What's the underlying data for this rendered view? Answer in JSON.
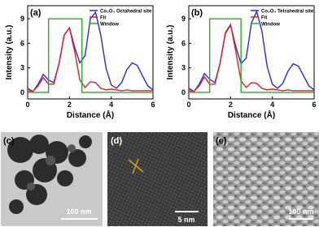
{
  "chart_data": [
    {
      "type": "line",
      "panel_label": "(a)",
      "x_label": "Distance (Å)",
      "y_label": "Intensity (a.u.)",
      "xlim": [
        0,
        6
      ],
      "xticks": [
        0,
        2,
        4,
        6
      ],
      "ylim": [
        -0.8,
        10.6
      ],
      "yticks": [
        0,
        3,
        6,
        9
      ],
      "x": [
        0,
        0.25,
        0.5,
        0.75,
        1,
        1.25,
        1.5,
        1.75,
        2,
        2.25,
        2.5,
        2.75,
        3,
        3.25,
        3.5,
        3.75,
        4,
        4.25,
        4.5,
        4.75,
        5,
        5.25,
        5.5,
        5.75,
        6
      ],
      "series": [
        {
          "name": "Co₃O₄ Octahedral site",
          "color": "#2b2bd0",
          "values": [
            0.5,
            0.1,
            1.0,
            2.2,
            1.5,
            1.2,
            3.5,
            7.0,
            7.9,
            5.5,
            3.6,
            4.5,
            9.0,
            9.8,
            7.0,
            3.0,
            0.9,
            0.5,
            1.2,
            2.8,
            3.6,
            3.3,
            2.0,
            0.8,
            0.3
          ]
        },
        {
          "name": "Fit",
          "color": "#e02020",
          "values": [
            0.2,
            0.1,
            0.8,
            1.8,
            1.0,
            1.0,
            3.5,
            7.0,
            7.9,
            5.0,
            1.5,
            0.6,
            1.3,
            1.2,
            0.5,
            0.3,
            0.4,
            0.3,
            0.2,
            0.3,
            0.2,
            0.2,
            0.2,
            0.2,
            0.2
          ]
        },
        {
          "name": "Window",
          "color": "#22b022",
          "x": [
            0,
            1,
            1,
            2.6,
            2.6,
            6
          ],
          "values": [
            0,
            0,
            9,
            9,
            0,
            0
          ]
        }
      ]
    },
    {
      "type": "line",
      "panel_label": "(b)",
      "x_label": "Distance (Å)",
      "y_label": "Intensity (a.u.)",
      "xlim": [
        0,
        6
      ],
      "xticks": [
        0,
        2,
        4,
        6
      ],
      "ylim": [
        -0.8,
        10.6
      ],
      "yticks": [
        0,
        3,
        6,
        9
      ],
      "x": [
        0,
        0.25,
        0.5,
        0.75,
        1,
        1.25,
        1.5,
        1.75,
        2,
        2.25,
        2.5,
        2.75,
        3,
        3.25,
        3.5,
        3.75,
        4,
        4.25,
        4.5,
        4.75,
        5,
        5.25,
        5.5,
        5.75,
        6
      ],
      "series": [
        {
          "name": "Co₃O₄ Tetrahedral site",
          "color": "#2b2bd0",
          "values": [
            0.5,
            0.1,
            1.0,
            2.3,
            1.6,
            1.2,
            3.6,
            7.2,
            8.2,
            5.6,
            3.5,
            4.2,
            8.5,
            9.9,
            7.5,
            3.2,
            1.0,
            0.5,
            1.1,
            2.6,
            3.5,
            3.2,
            2.0,
            0.8,
            0.3
          ]
        },
        {
          "name": "Fit",
          "color": "#e02020",
          "values": [
            0.2,
            0.1,
            0.8,
            1.9,
            1.0,
            1.0,
            3.6,
            7.3,
            8.3,
            5.0,
            1.4,
            0.6,
            1.2,
            1.1,
            0.5,
            0.3,
            0.4,
            0.3,
            0.2,
            0.3,
            0.2,
            0.2,
            0.2,
            0.2,
            0.2
          ]
        },
        {
          "name": "Window",
          "color": "#22b022",
          "x": [
            0,
            1,
            1,
            2.5,
            2.5,
            6
          ],
          "values": [
            0,
            0,
            9,
            9,
            0,
            0
          ]
        }
      ]
    }
  ],
  "images": [
    {
      "label": "(c)",
      "scale_bar": "100 nm"
    },
    {
      "label": "(d)",
      "scale_bar": "5 nm"
    },
    {
      "label": "(e)",
      "scale_bar": "100 nm"
    }
  ]
}
